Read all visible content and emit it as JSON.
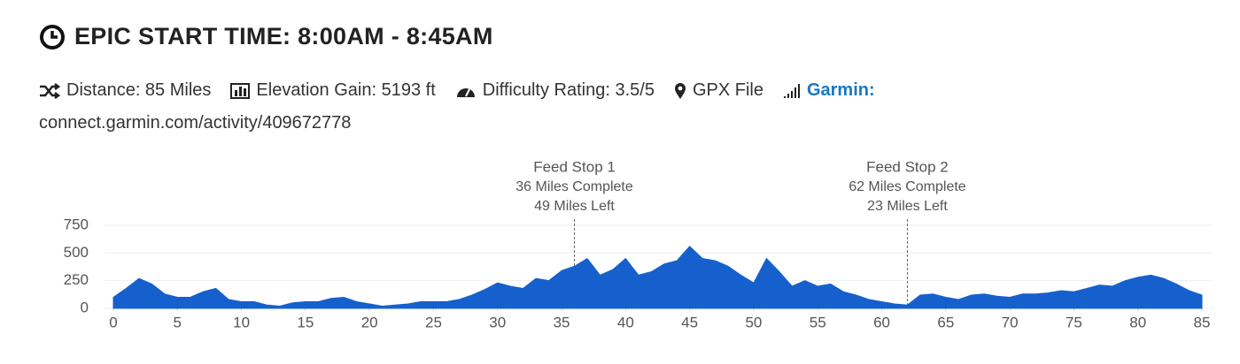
{
  "header": {
    "title": "EPIC START TIME: 8:00AM - 8:45AM",
    "distance": "Distance: 85 Miles",
    "elevation_gain": "Elevation Gain: 5193 ft",
    "difficulty": "Difficulty Rating: 3.5/5",
    "gpx": "GPX File",
    "garmin": "Garmin:",
    "garmin_link": "connect.garmin.com/activity/409672778"
  },
  "chart_data": {
    "type": "area",
    "color": "#1560cc",
    "grid": true,
    "x": [
      0,
      1,
      2,
      3,
      4,
      5,
      6,
      7,
      8,
      9,
      10,
      11,
      12,
      13,
      14,
      15,
      16,
      17,
      18,
      19,
      20,
      21,
      22,
      23,
      24,
      25,
      26,
      27,
      28,
      29,
      30,
      31,
      32,
      33,
      34,
      35,
      36,
      37,
      38,
      39,
      40,
      41,
      42,
      43,
      44,
      45,
      46,
      47,
      48,
      49,
      50,
      51,
      52,
      53,
      54,
      55,
      56,
      57,
      58,
      59,
      60,
      61,
      62,
      63,
      64,
      65,
      66,
      67,
      68,
      69,
      70,
      71,
      72,
      73,
      74,
      75,
      76,
      77,
      78,
      79,
      80,
      81,
      82,
      83,
      84,
      85
    ],
    "values": [
      100,
      180,
      270,
      220,
      130,
      100,
      100,
      150,
      180,
      80,
      60,
      60,
      30,
      20,
      50,
      60,
      60,
      90,
      100,
      60,
      40,
      20,
      30,
      40,
      60,
      60,
      60,
      80,
      120,
      170,
      230,
      200,
      180,
      270,
      250,
      340,
      380,
      450,
      300,
      350,
      450,
      300,
      330,
      400,
      430,
      560,
      450,
      430,
      380,
      300,
      230,
      450,
      330,
      200,
      250,
      200,
      220,
      150,
      120,
      80,
      60,
      40,
      30,
      120,
      130,
      100,
      80,
      120,
      130,
      110,
      100,
      130,
      130,
      140,
      160,
      150,
      180,
      210,
      200,
      250,
      280,
      300,
      270,
      220,
      160,
      120
    ],
    "xlim": [
      0,
      85
    ],
    "xticks": [
      0,
      5,
      10,
      15,
      20,
      25,
      30,
      35,
      40,
      45,
      50,
      55,
      60,
      65,
      70,
      75,
      80,
      85
    ],
    "ylim": [
      0,
      750
    ],
    "yticks": [
      0,
      250,
      500,
      750
    ],
    "annotations": [
      {
        "x": 36,
        "lines": [
          "Feed Stop 1",
          "36 Miles Complete",
          "49 Miles Left"
        ]
      },
      {
        "x": 62,
        "lines": [
          "Feed Stop 2",
          "62 Miles Complete",
          "23 Miles Left"
        ]
      }
    ]
  }
}
